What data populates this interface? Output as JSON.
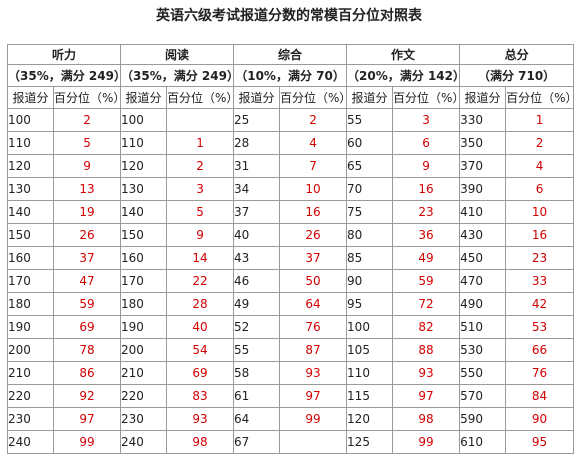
{
  "title": "英语六级考试报道分数的常模百分位对照表",
  "colors": {
    "percentile": "#d40000",
    "border": "#9a9a9a"
  },
  "sections": [
    {
      "name": "听力",
      "detail": "（35%，满分 249）"
    },
    {
      "name": "阅读",
      "detail": "（35%，满分 249）"
    },
    {
      "name": "综合",
      "detail": "（10%，满分 70）"
    },
    {
      "name": "作文",
      "detail": "（20%，满分 142）"
    },
    {
      "name": "总分",
      "detail": "（满分 710）"
    }
  ],
  "subheaders": {
    "score": "报道分",
    "percentile": "百分位（%）"
  },
  "rows": [
    [
      "100",
      "2",
      "100",
      "",
      "25",
      "2",
      "55",
      "3",
      "330",
      "1"
    ],
    [
      "110",
      "5",
      "110",
      "1",
      "28",
      "4",
      "60",
      "6",
      "350",
      "2"
    ],
    [
      "120",
      "9",
      "120",
      "2",
      "31",
      "7",
      "65",
      "9",
      "370",
      "4"
    ],
    [
      "130",
      "13",
      "130",
      "3",
      "34",
      "10",
      "70",
      "16",
      "390",
      "6"
    ],
    [
      "140",
      "19",
      "140",
      "5",
      "37",
      "16",
      "75",
      "23",
      "410",
      "10"
    ],
    [
      "150",
      "26",
      "150",
      "9",
      "40",
      "26",
      "80",
      "36",
      "430",
      "16"
    ],
    [
      "160",
      "37",
      "160",
      "14",
      "43",
      "37",
      "85",
      "49",
      "450",
      "23"
    ],
    [
      "170",
      "47",
      "170",
      "22",
      "46",
      "50",
      "90",
      "59",
      "470",
      "33"
    ],
    [
      "180",
      "59",
      "180",
      "28",
      "49",
      "64",
      "95",
      "72",
      "490",
      "42"
    ],
    [
      "190",
      "69",
      "190",
      "40",
      "52",
      "76",
      "100",
      "82",
      "510",
      "53"
    ],
    [
      "200",
      "78",
      "200",
      "54",
      "55",
      "87",
      "105",
      "88",
      "530",
      "66"
    ],
    [
      "210",
      "86",
      "210",
      "69",
      "58",
      "93",
      "110",
      "93",
      "550",
      "76"
    ],
    [
      "220",
      "92",
      "220",
      "83",
      "61",
      "97",
      "115",
      "97",
      "570",
      "84"
    ],
    [
      "230",
      "97",
      "230",
      "93",
      "64",
      "99",
      "120",
      "98",
      "590",
      "90"
    ],
    [
      "240",
      "99",
      "240",
      "98",
      "67",
      "",
      "125",
      "99",
      "610",
      "95"
    ]
  ]
}
